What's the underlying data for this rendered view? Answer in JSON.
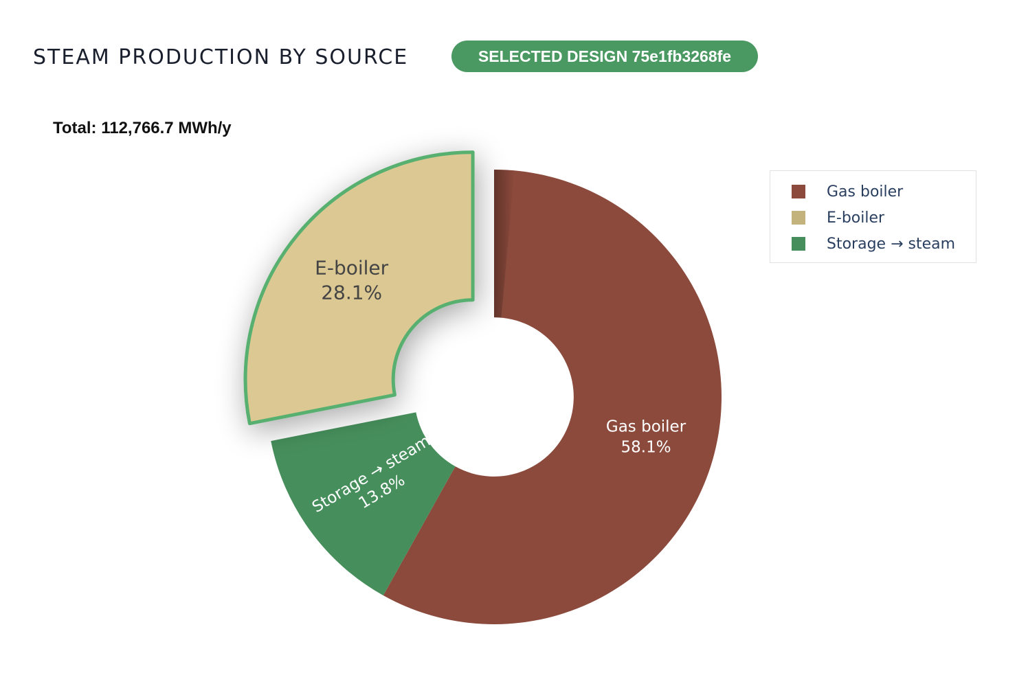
{
  "header": {
    "title": "STEAM PRODUCTION BY SOURCE",
    "badge": "SELECTED DESIGN 75e1fb3268fe"
  },
  "total_label": "Total: 112,766.7 MWh/y",
  "chart_data": {
    "type": "pie",
    "hole": 0.35,
    "direction": "clockwise",
    "rotation_deg": 90,
    "legend_position": "top-right",
    "slices": [
      {
        "label": "Gas boiler",
        "value": 58.1,
        "percent_label": "58.1%",
        "color": "#8b4a3c",
        "text_color": "#ffffff",
        "pulled": false
      },
      {
        "label": "Storage → steam",
        "value": 13.8,
        "percent_label": "13.8%",
        "color": "#468f5c",
        "text_color": "#ffffff",
        "pulled": false
      },
      {
        "label": "E-boiler",
        "value": 28.1,
        "percent_label": "28.1%",
        "color": "#dbc892",
        "text_color": "#444444",
        "pulled": true,
        "outline_color": "#58b06f"
      }
    ]
  },
  "legend": {
    "items": [
      {
        "label": "Gas boiler",
        "color": "#8b4a3c"
      },
      {
        "label": "E-boiler",
        "color": "#c4b27c"
      },
      {
        "label": "Storage → steam",
        "color": "#468f5c"
      }
    ]
  }
}
